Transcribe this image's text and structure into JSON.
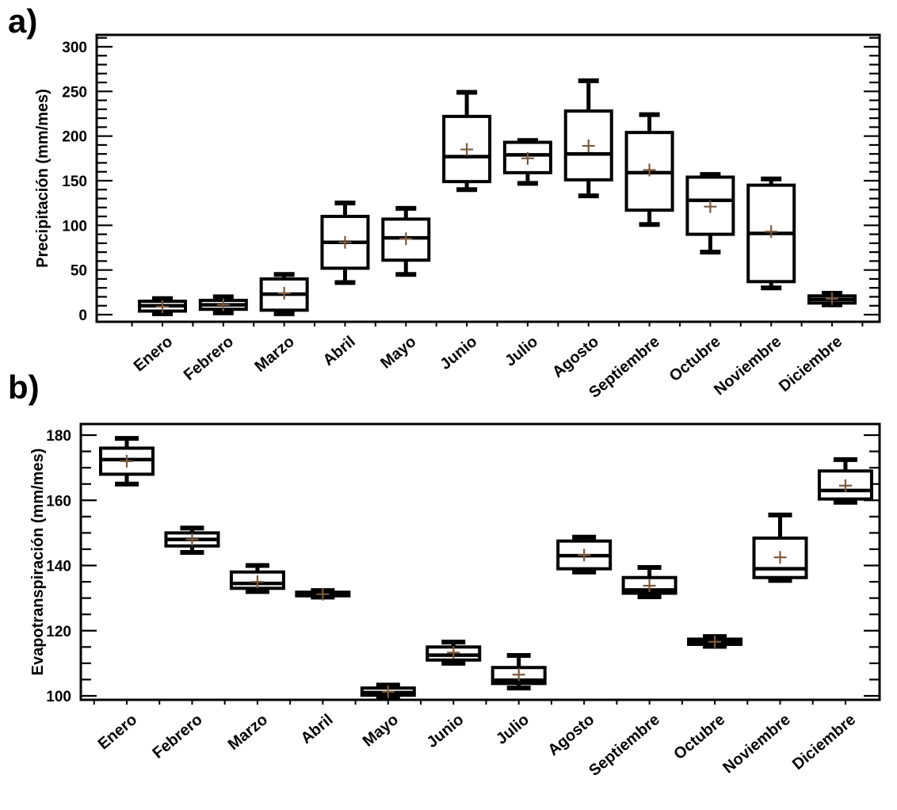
{
  "figure_title": "",
  "panels": {
    "a": {
      "label": "a)"
    },
    "b": {
      "label": "b)"
    }
  },
  "chart_data": [
    {
      "id": "precipitation",
      "type": "boxplot",
      "panel_label": "a)",
      "title": "",
      "xlabel": "",
      "ylabel": "Precipitación (mm/mes)",
      "ylim": [
        0,
        300
      ],
      "y_major_step": 50,
      "y_minor_step": 10,
      "y_ticks": [
        "0",
        "50",
        "100",
        "150",
        "200",
        "250",
        "300"
      ],
      "grid": false,
      "x_tick_rotation": -40,
      "box_color": "#000000",
      "mean_marker": "+",
      "mean_color": "#7a5a40",
      "categories": [
        "Enero",
        "Febrero",
        "Marzo",
        "Abril",
        "Mayo",
        "Junio",
        "Julio",
        "Agosto",
        "Septiembre",
        "Octubre",
        "Noviembre",
        "Diciembre"
      ],
      "boxes": [
        {
          "min": 1,
          "q1": 4,
          "median": 10,
          "q3": 15,
          "max": 18,
          "mean": 9
        },
        {
          "min": 2,
          "q1": 6,
          "median": 11,
          "q3": 16,
          "max": 20,
          "mean": 11
        },
        {
          "min": 1,
          "q1": 5,
          "median": 23,
          "q3": 40,
          "max": 45,
          "mean": 24
        },
        {
          "min": 36,
          "q1": 52,
          "median": 81,
          "q3": 110,
          "max": 125,
          "mean": 81
        },
        {
          "min": 45,
          "q1": 61,
          "median": 86,
          "q3": 107,
          "max": 119,
          "mean": 85
        },
        {
          "min": 140,
          "q1": 149,
          "median": 177,
          "q3": 222,
          "max": 249,
          "mean": 185
        },
        {
          "min": 147,
          "q1": 159,
          "median": 179,
          "q3": 193,
          "max": 195,
          "mean": 175
        },
        {
          "min": 133,
          "q1": 151,
          "median": 180,
          "q3": 228,
          "max": 262,
          "mean": 189
        },
        {
          "min": 101,
          "q1": 117,
          "median": 159,
          "q3": 204,
          "max": 224,
          "mean": 162
        },
        {
          "min": 70,
          "q1": 90,
          "median": 128,
          "q3": 154,
          "max": 157,
          "mean": 121
        },
        {
          "min": 30,
          "q1": 37,
          "median": 91,
          "q3": 145,
          "max": 152,
          "mean": 93
        },
        {
          "min": 11,
          "q1": 13,
          "median": 17,
          "q3": 21,
          "max": 24,
          "mean": 18
        }
      ]
    },
    {
      "id": "evapotranspiration",
      "type": "boxplot",
      "panel_label": "b)",
      "title": "",
      "xlabel": "",
      "ylabel": "Evapotranspiración (mm/mes)",
      "ylim": [
        100,
        180
      ],
      "y_major_step": 20,
      "y_minor_step": 5,
      "y_ticks": [
        "100",
        "120",
        "140",
        "160",
        "180"
      ],
      "grid": false,
      "x_tick_rotation": -40,
      "box_color": "#000000",
      "mean_marker": "+",
      "mean_color": "#7a5a40",
      "categories": [
        "Enero",
        "Febrero",
        "Marzo",
        "Abril",
        "Mayo",
        "Junio",
        "Julio",
        "Agosto",
        "Septiembre",
        "Octubre",
        "Noviembre",
        "Diciembre"
      ],
      "boxes": [
        {
          "min": 165,
          "q1": 168,
          "median": 172.5,
          "q3": 176,
          "max": 179,
          "mean": 172
        },
        {
          "min": 144,
          "q1": 146,
          "median": 148,
          "q3": 150,
          "max": 151.5,
          "mean": 148
        },
        {
          "min": 132,
          "q1": 133,
          "median": 134.5,
          "q3": 138,
          "max": 140,
          "mean": 135
        },
        {
          "min": 130.3,
          "q1": 130.7,
          "median": 131.2,
          "q3": 131.8,
          "max": 132.3,
          "mean": 131.2
        },
        {
          "min": 99.5,
          "q1": 100.2,
          "median": 101,
          "q3": 102.4,
          "max": 103.3,
          "mean": 101.3
        },
        {
          "min": 110,
          "q1": 111,
          "median": 112.5,
          "q3": 115,
          "max": 116.5,
          "mean": 113.3
        },
        {
          "min": 102.4,
          "q1": 103.8,
          "median": 104.8,
          "q3": 108.7,
          "max": 112.4,
          "mean": 106.5
        },
        {
          "min": 138,
          "q1": 139,
          "median": 143,
          "q3": 147.5,
          "max": 148.7,
          "mean": 143.2
        },
        {
          "min": 130.4,
          "q1": 131.5,
          "median": 132.5,
          "q3": 136.3,
          "max": 139.4,
          "mean": 133.8
        },
        {
          "min": 115.2,
          "q1": 115.8,
          "median": 116.5,
          "q3": 117.4,
          "max": 118.2,
          "mean": 116.6
        },
        {
          "min": 135.4,
          "q1": 136.3,
          "median": 139,
          "q3": 148.4,
          "max": 155.5,
          "mean": 142.5
        },
        {
          "min": 159.4,
          "q1": 160.4,
          "median": 163,
          "q3": 169,
          "max": 172.5,
          "mean": 164.5
        }
      ]
    }
  ]
}
